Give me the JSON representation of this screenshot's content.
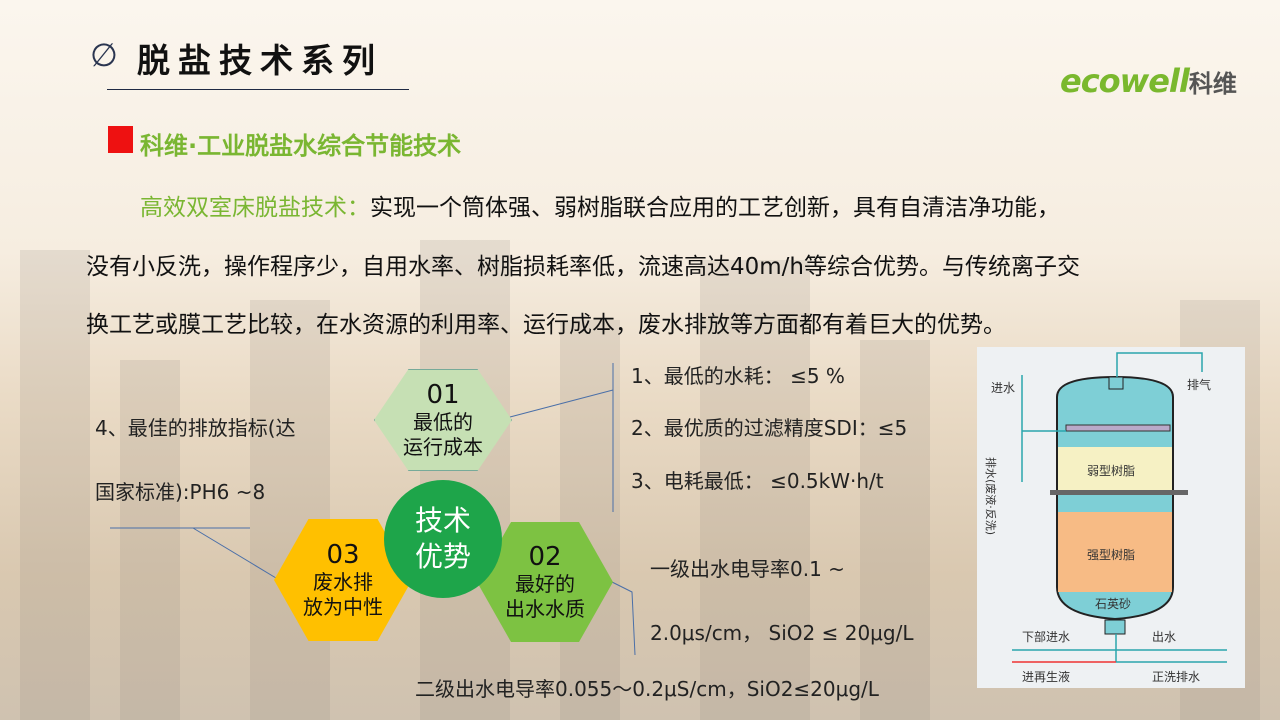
{
  "title": {
    "icon": "empty-set-icon",
    "text": "脱盐技术系列"
  },
  "logo": {
    "text": "ecowell",
    "cn": "科维",
    "color": "#7ab82e"
  },
  "heading": {
    "text": "科维·工业脱盐水综合节能技术",
    "color": "#7ab632",
    "bullet_color": "#ee1111"
  },
  "intro": {
    "highlight": "高效双室床脱盐技术：",
    "line1": "实现一个筒体强、弱树脂联合应用的工艺创新，具有自清洁净功能，",
    "line2": "没有小反洗，操作程序少，自用水率、树脂损耗率低，流速高达40m/h等综合优势。与传统离子交",
    "line3": "换工艺或膜工艺比较，在水资源的利用率、运行成本，废水排放等方面都有着巨大的优势。"
  },
  "center": {
    "line1": "技术",
    "line2": "优势",
    "color": "#1ea54a"
  },
  "hexes": [
    {
      "num": "01",
      "line1": "最低的",
      "line2": "运行成本",
      "color": "#c6e0b4"
    },
    {
      "num": "02",
      "line1": "最好的",
      "line2": "出水水质",
      "color": "#7dc242"
    },
    {
      "num": "03",
      "line1": "废水排",
      "line2": "放为中性",
      "color": "#ffc000"
    }
  ],
  "points": {
    "p1": "1、最低的水耗： ≤5 %",
    "p2": "2、最优质的过滤精度SDI：≤5",
    "p3": "3、电耗最低： ≤0.5kW·h/t",
    "p4a": "4、最佳的排放指标(达",
    "p4b": "国家标准):PH6 ~8"
  },
  "quality": {
    "l1": "一级出水电导率0.1 ~",
    "l2": "2.0μs/cm， SiO2 ≤ 20μg/L",
    "l3": "二级出水电导率0.055～0.2μS/cm，SiO2≤20μg/L"
  },
  "diagram": {
    "inlet": "进水",
    "vent": "排气",
    "drain": "排水(废液·反洗)",
    "weak": "弱型树脂",
    "strong": "强型树脂",
    "sand": "石英砂",
    "bottom_in": "下部进水",
    "regen": "进再生液",
    "outlet": "出水",
    "rinse": "正洗排水"
  }
}
